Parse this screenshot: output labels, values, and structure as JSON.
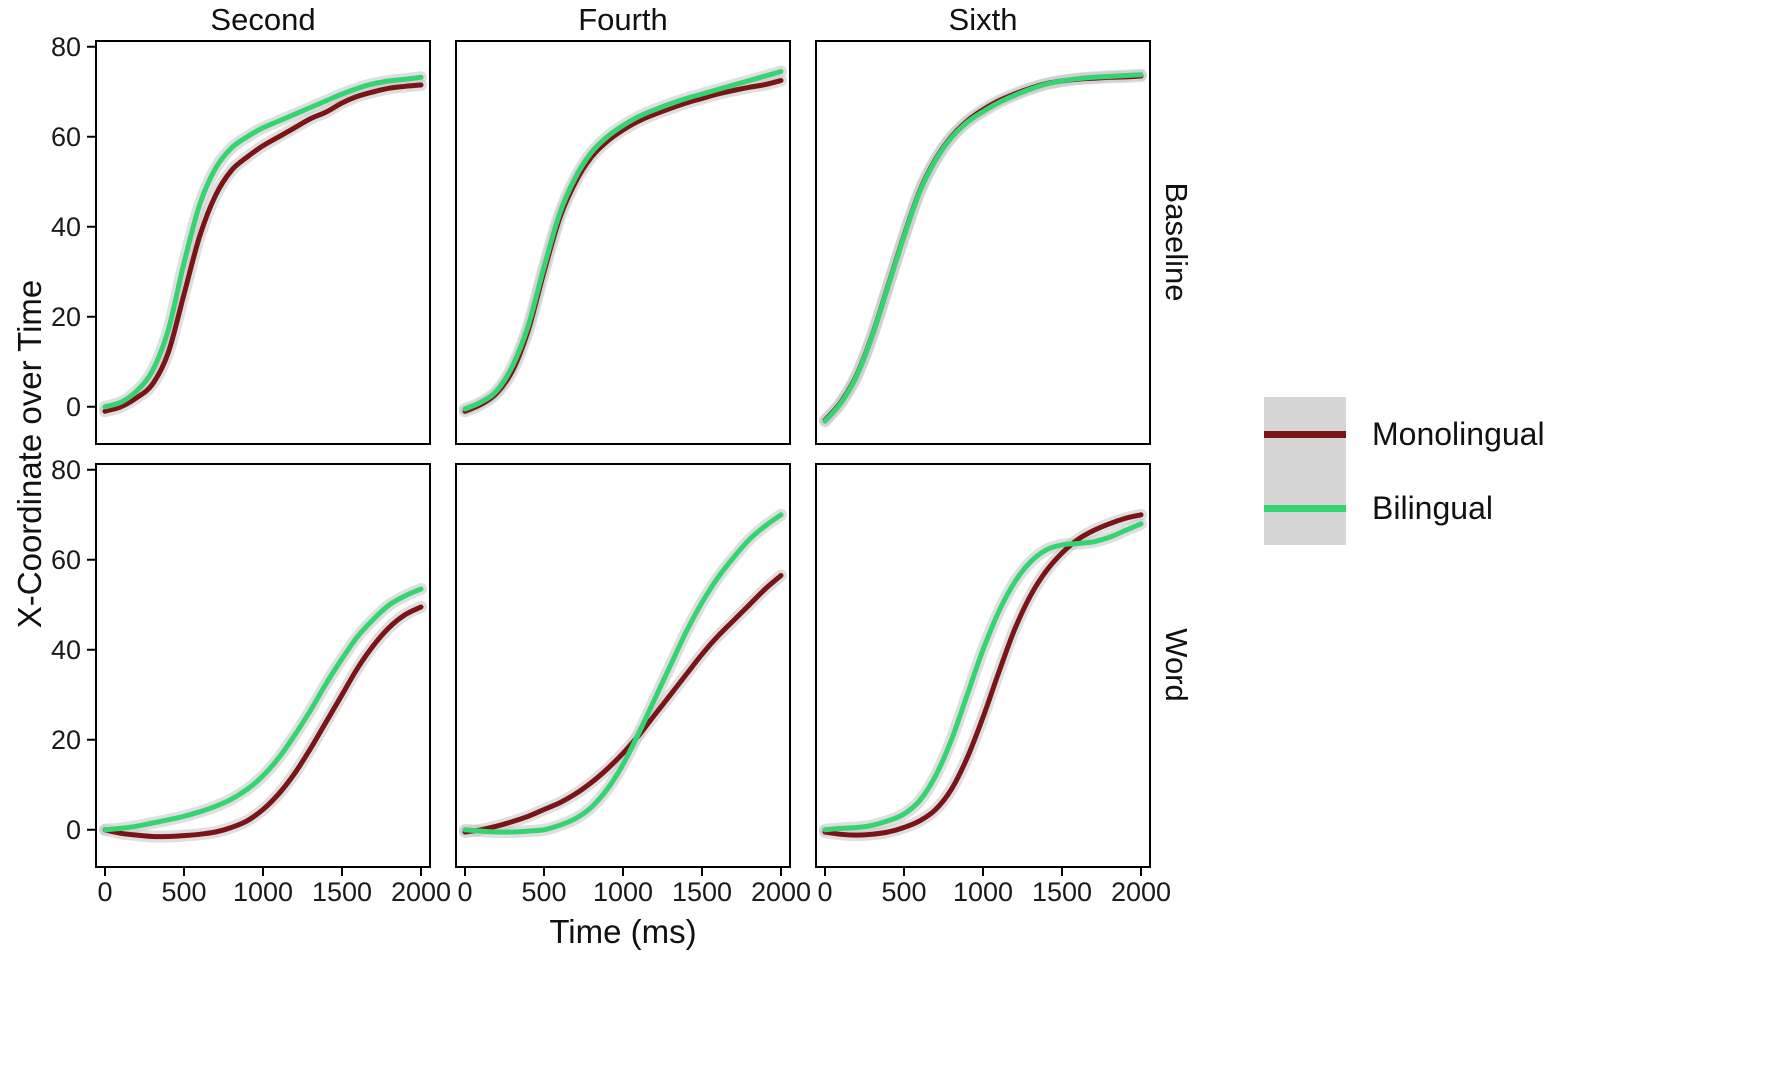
{
  "figure": {
    "ylabel": "X-Coordinate over Time",
    "xlabel": "Time (ms)",
    "col_labels": [
      "Second",
      "Fourth",
      "Sixth"
    ],
    "row_labels": [
      "Baseline",
      "Word"
    ],
    "legend": {
      "key_background": "#d6d6d6",
      "items": [
        {
          "label": "Monolingual",
          "color": "#7a1517"
        },
        {
          "label": "Bilingual",
          "color": "#36d372"
        }
      ]
    }
  },
  "chart_data": {
    "type": "line",
    "title": "",
    "xlabel": "Time (ms)",
    "ylabel": "X-Coordinate over Time",
    "facet_rows": [
      "Baseline",
      "Word"
    ],
    "facet_cols": [
      "Second",
      "Fourth",
      "Sixth"
    ],
    "xlim": [
      0,
      2000
    ],
    "ylim": [
      -8.5,
      81.5
    ],
    "x_ticks": [
      0,
      500,
      1000,
      1500,
      2000
    ],
    "y_ticks": [
      0,
      20,
      40,
      60,
      80
    ],
    "grid": false,
    "legend_position": "right",
    "series_colors": {
      "Monolingual": "#7a1517",
      "Bilingual": "#36d372"
    },
    "ribbon_color": "#c4c4c4",
    "x": [
      0,
      100,
      200,
      300,
      400,
      500,
      600,
      700,
      800,
      900,
      1000,
      1100,
      1200,
      1300,
      1400,
      1500,
      1600,
      1700,
      1800,
      1900,
      2000
    ],
    "facets": [
      {
        "row": "Baseline",
        "col": "Second",
        "series": [
          {
            "name": "Monolingual",
            "values": [
              -1,
              0,
              2,
              5,
              12,
              25,
              38,
              47,
              52.5,
              55.5,
              58,
              60,
              62,
              64,
              65.5,
              67.5,
              69,
              70,
              70.8,
              71.2,
              71.5
            ]
          },
          {
            "name": "Bilingual",
            "values": [
              0,
              1,
              3.5,
              8,
              17,
              32,
              45,
              53,
              57.5,
              60,
              62,
              63.5,
              65,
              66.5,
              68,
              69.5,
              70.8,
              71.8,
              72.4,
              72.8,
              73.2
            ]
          }
        ]
      },
      {
        "row": "Baseline",
        "col": "Fourth",
        "series": [
          {
            "name": "Monolingual",
            "values": [
              -1,
              0.5,
              3,
              8,
              17,
              30,
              42,
              50,
              55.5,
              59,
              61.5,
              63.5,
              65,
              66.3,
              67.5,
              68.5,
              69.5,
              70.3,
              71,
              71.6,
              72.5
            ]
          },
          {
            "name": "Bilingual",
            "values": [
              -0.5,
              1,
              3.5,
              9,
              18,
              31,
              43,
              51,
              56.5,
              60,
              62.5,
              64.5,
              66,
              67.3,
              68.5,
              69.5,
              70.5,
              71.5,
              72.5,
              73.5,
              74.5
            ]
          }
        ]
      },
      {
        "row": "Baseline",
        "col": "Sixth",
        "series": [
          {
            "name": "Monolingual",
            "values": [
              -3,
              1,
              7,
              16,
              27,
              38,
              48,
              55,
              60,
              63.5,
              66,
              68,
              69.5,
              70.8,
              71.8,
              72.4,
              72.8,
              73,
              73.2,
              73.3,
              73.5
            ]
          },
          {
            "name": "Bilingual",
            "values": [
              -3.2,
              0.8,
              6.8,
              15.8,
              26.8,
              37.8,
              47.8,
              54.8,
              59.8,
              63.2,
              65.6,
              67.6,
              69.2,
              70.6,
              71.7,
              72.4,
              72.9,
              73.2,
              73.4,
              73.6,
              73.8
            ]
          }
        ]
      },
      {
        "row": "Word",
        "col": "Second",
        "series": [
          {
            "name": "Monolingual",
            "values": [
              0,
              -0.8,
              -1.2,
              -1.5,
              -1.5,
              -1.3,
              -1,
              -0.5,
              0.5,
              2,
              4.5,
              8,
              12.5,
              18,
              24,
              30,
              36,
              41,
              45,
              47.8,
              49.5
            ]
          },
          {
            "name": "Bilingual",
            "values": [
              0,
              0.3,
              0.8,
              1.5,
              2.2,
              3,
              4,
              5.2,
              6.8,
              9,
              12,
              16,
              21,
              26.5,
              32.5,
              38,
              43,
              46.8,
              50,
              52,
              53.5
            ]
          }
        ]
      },
      {
        "row": "Word",
        "col": "Fourth",
        "series": [
          {
            "name": "Monolingual",
            "values": [
              -0.5,
              0,
              0.8,
              1.8,
              3,
              4.5,
              6,
              8,
              10.5,
              13.5,
              17,
              21,
              25.5,
              30,
              34.5,
              39,
              43,
              46.5,
              50,
              53.5,
              56.5
            ]
          },
          {
            "name": "Bilingual",
            "values": [
              0,
              -0.3,
              -0.5,
              -0.5,
              -0.3,
              0,
              1,
              2.5,
              5,
              9,
              14.5,
              21.5,
              29,
              36.5,
              44,
              50.5,
              56,
              60.5,
              64.5,
              67.5,
              70
            ]
          }
        ]
      },
      {
        "row": "Word",
        "col": "Sixth",
        "series": [
          {
            "name": "Monolingual",
            "values": [
              -0.5,
              -1,
              -1.2,
              -1,
              -0.5,
              0.5,
              2,
              4.5,
              9,
              16,
              25,
              35,
              44.5,
              52,
              57.5,
              61.5,
              64.5,
              66.5,
              68,
              69.2,
              70
            ]
          },
          {
            "name": "Bilingual",
            "values": [
              0,
              0.3,
              0.5,
              1,
              2,
              3.5,
              6.5,
              12,
              20,
              30,
              40,
              48.5,
              55,
              59.5,
              62.2,
              63.3,
              63.6,
              64,
              65,
              66.5,
              68
            ]
          }
        ]
      }
    ]
  }
}
